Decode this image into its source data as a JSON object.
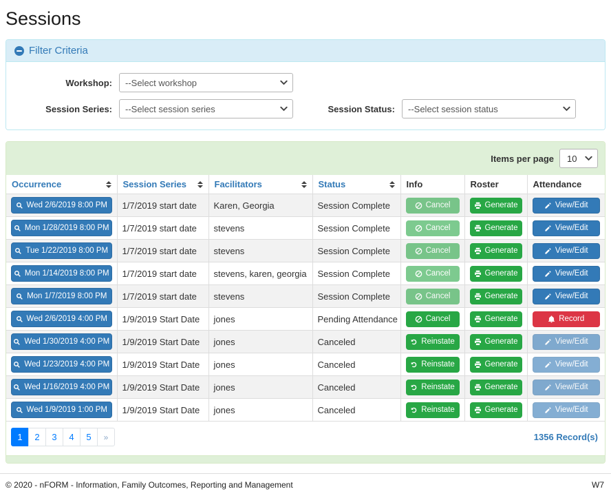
{
  "page": {
    "title": "Sessions"
  },
  "filter": {
    "title": "Filter Criteria",
    "workshop": {
      "label": "Workshop:",
      "value": "--Select workshop"
    },
    "session_series": {
      "label": "Session Series:",
      "value": "--Select session series"
    },
    "session_status": {
      "label": "Session Status:",
      "value": "--Select session status"
    }
  },
  "table": {
    "items_per_page_label": "Items per page",
    "items_per_page_value": "10",
    "columns": [
      {
        "label": "Occurrence",
        "sortable": true
      },
      {
        "label": "Session Series",
        "sortable": true
      },
      {
        "label": "Facilitators",
        "sortable": true
      },
      {
        "label": "Status",
        "sortable": true
      },
      {
        "label": "Info",
        "sortable": false
      },
      {
        "label": "Roster",
        "sortable": false
      },
      {
        "label": "Attendance",
        "sortable": false
      }
    ],
    "rows": [
      {
        "occurrence": "Wed 2/6/2019 8:00 PM",
        "session_series": "1/7/2019 start date",
        "facilitators": "Karen, Georgia",
        "status": "Session Complete",
        "info_button": {
          "label": "Cancel",
          "action": "cancel",
          "variant": "success",
          "icon": "ban-icon",
          "disabled": true
        },
        "roster_button": {
          "label": "Generate",
          "action": "generate",
          "variant": "success",
          "icon": "printer-icon",
          "disabled": false
        },
        "attendance_button": {
          "label": "View/Edit",
          "action": "view-edit",
          "variant": "primary",
          "icon": "pencil-icon",
          "disabled": false
        }
      },
      {
        "occurrence": "Mon 1/28/2019 8:00 PM",
        "session_series": "1/7/2019 start date",
        "facilitators": "stevens",
        "status": "Session Complete",
        "info_button": {
          "label": "Cancel",
          "action": "cancel",
          "variant": "success",
          "icon": "ban-icon",
          "disabled": true
        },
        "roster_button": {
          "label": "Generate",
          "action": "generate",
          "variant": "success",
          "icon": "printer-icon",
          "disabled": false
        },
        "attendance_button": {
          "label": "View/Edit",
          "action": "view-edit",
          "variant": "primary",
          "icon": "pencil-icon",
          "disabled": false
        }
      },
      {
        "occurrence": "Tue 1/22/2019 8:00 PM",
        "session_series": "1/7/2019 start date",
        "facilitators": "stevens",
        "status": "Session Complete",
        "info_button": {
          "label": "Cancel",
          "action": "cancel",
          "variant": "success",
          "icon": "ban-icon",
          "disabled": true
        },
        "roster_button": {
          "label": "Generate",
          "action": "generate",
          "variant": "success",
          "icon": "printer-icon",
          "disabled": false
        },
        "attendance_button": {
          "label": "View/Edit",
          "action": "view-edit",
          "variant": "primary",
          "icon": "pencil-icon",
          "disabled": false
        }
      },
      {
        "occurrence": "Mon 1/14/2019 8:00 PM",
        "session_series": "1/7/2019 start date",
        "facilitators": "stevens, karen, georgia",
        "status": "Session Complete",
        "info_button": {
          "label": "Cancel",
          "action": "cancel",
          "variant": "success",
          "icon": "ban-icon",
          "disabled": true
        },
        "roster_button": {
          "label": "Generate",
          "action": "generate",
          "variant": "success",
          "icon": "printer-icon",
          "disabled": false
        },
        "attendance_button": {
          "label": "View/Edit",
          "action": "view-edit",
          "variant": "primary",
          "icon": "pencil-icon",
          "disabled": false
        }
      },
      {
        "occurrence": "Mon 1/7/2019 8:00 PM",
        "session_series": "1/7/2019 start date",
        "facilitators": "stevens",
        "status": "Session Complete",
        "info_button": {
          "label": "Cancel",
          "action": "cancel",
          "variant": "success",
          "icon": "ban-icon",
          "disabled": true
        },
        "roster_button": {
          "label": "Generate",
          "action": "generate",
          "variant": "success",
          "icon": "printer-icon",
          "disabled": false
        },
        "attendance_button": {
          "label": "View/Edit",
          "action": "view-edit",
          "variant": "primary",
          "icon": "pencil-icon",
          "disabled": false
        }
      },
      {
        "occurrence": "Wed 2/6/2019 4:00 PM",
        "session_series": "1/9/2019 Start Date",
        "facilitators": "jones",
        "status": "Pending Attendance",
        "info_button": {
          "label": "Cancel",
          "action": "cancel",
          "variant": "success",
          "icon": "ban-icon",
          "disabled": false
        },
        "roster_button": {
          "label": "Generate",
          "action": "generate",
          "variant": "success",
          "icon": "printer-icon",
          "disabled": false
        },
        "attendance_button": {
          "label": "Record",
          "action": "record",
          "variant": "danger",
          "icon": "bell-icon",
          "disabled": false
        }
      },
      {
        "occurrence": "Wed 1/30/2019 4:00 PM",
        "session_series": "1/9/2019 Start Date",
        "facilitators": "jones",
        "status": "Canceled",
        "info_button": {
          "label": "Reinstate",
          "action": "reinstate",
          "variant": "success",
          "icon": "undo-icon",
          "disabled": false
        },
        "roster_button": {
          "label": "Generate",
          "action": "generate",
          "variant": "success",
          "icon": "printer-icon",
          "disabled": false
        },
        "attendance_button": {
          "label": "View/Edit",
          "action": "view-edit",
          "variant": "primary",
          "icon": "pencil-icon",
          "disabled": true
        }
      },
      {
        "occurrence": "Wed 1/23/2019 4:00 PM",
        "session_series": "1/9/2019 Start Date",
        "facilitators": "jones",
        "status": "Canceled",
        "info_button": {
          "label": "Reinstate",
          "action": "reinstate",
          "variant": "success",
          "icon": "undo-icon",
          "disabled": false
        },
        "roster_button": {
          "label": "Generate",
          "action": "generate",
          "variant": "success",
          "icon": "printer-icon",
          "disabled": false
        },
        "attendance_button": {
          "label": "View/Edit",
          "action": "view-edit",
          "variant": "primary",
          "icon": "pencil-icon",
          "disabled": true
        }
      },
      {
        "occurrence": "Wed 1/16/2019 4:00 PM",
        "session_series": "1/9/2019 Start Date",
        "facilitators": "jones",
        "status": "Canceled",
        "info_button": {
          "label": "Reinstate",
          "action": "reinstate",
          "variant": "success",
          "icon": "undo-icon",
          "disabled": false
        },
        "roster_button": {
          "label": "Generate",
          "action": "generate",
          "variant": "success",
          "icon": "printer-icon",
          "disabled": false
        },
        "attendance_button": {
          "label": "View/Edit",
          "action": "view-edit",
          "variant": "primary",
          "icon": "pencil-icon",
          "disabled": true
        }
      },
      {
        "occurrence": "Wed 1/9/2019 1:00 PM",
        "session_series": "1/9/2019 Start Date",
        "facilitators": "jones",
        "status": "Canceled",
        "info_button": {
          "label": "Reinstate",
          "action": "reinstate",
          "variant": "success",
          "icon": "undo-icon",
          "disabled": false
        },
        "roster_button": {
          "label": "Generate",
          "action": "generate",
          "variant": "success",
          "icon": "printer-icon",
          "disabled": false
        },
        "attendance_button": {
          "label": "View/Edit",
          "action": "view-edit",
          "variant": "primary",
          "icon": "pencil-icon",
          "disabled": true
        }
      }
    ]
  },
  "pagination": {
    "pages": [
      "1",
      "2",
      "3",
      "4",
      "5",
      "»"
    ],
    "active_page": "1",
    "record_count": "1356 Record(s)"
  },
  "footer": {
    "copyright": "© 2020 - nFORM - Information, Family Outcomes, Reporting and Management",
    "env": "W7"
  },
  "colors": {
    "primary": "#337ab7",
    "success": "#28a745",
    "danger": "#dc3545",
    "pagination_active": "#007bff",
    "info_bg": "#d9edf7",
    "info_border": "#bce8f1",
    "success_bg": "#dff0d8",
    "success_border": "#d6e9c6"
  }
}
